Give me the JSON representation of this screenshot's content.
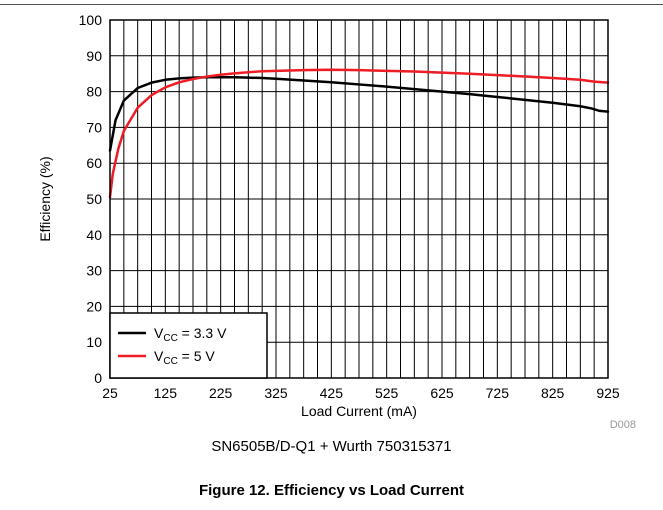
{
  "chart_data": {
    "type": "line",
    "xlabel": "Load Current (mA)",
    "ylabel": "Efficiency (%)",
    "xlim": [
      25,
      925
    ],
    "ylim": [
      0,
      100
    ],
    "x_ticks": [
      25,
      125,
      225,
      325,
      425,
      525,
      625,
      725,
      825,
      925
    ],
    "y_ticks": [
      0,
      10,
      20,
      30,
      40,
      50,
      60,
      70,
      80,
      90,
      100
    ],
    "grid": true,
    "legend_position": "bottom-left",
    "series": [
      {
        "name_main": "V",
        "name_sub": "CC",
        "name_rest": " = 3.3 V",
        "color": "#000000",
        "x": [
          25,
          35,
          50,
          75,
          100,
          125,
          150,
          175,
          200,
          225,
          250,
          275,
          300,
          325,
          375,
          425,
          475,
          525,
          575,
          625,
          675,
          725,
          775,
          825,
          875,
          895,
          910,
          925
        ],
        "y": [
          63.5,
          72,
          77.5,
          81,
          82.5,
          83.3,
          83.7,
          83.9,
          84.0,
          84.0,
          84.0,
          83.9,
          83.8,
          83.6,
          83.1,
          82.6,
          82.0,
          81.4,
          80.7,
          80.0,
          79.3,
          78.5,
          77.7,
          76.9,
          75.9,
          75.3,
          74.6,
          74.4
        ]
      },
      {
        "name_main": "V",
        "name_sub": "CC",
        "name_rest": " = 5 V",
        "color": "#ee1c25",
        "x": [
          25,
          30,
          40,
          50,
          75,
          100,
          125,
          150,
          175,
          200,
          225,
          250,
          275,
          300,
          325,
          375,
          425,
          475,
          525,
          575,
          625,
          675,
          725,
          775,
          825,
          875,
          900,
          925
        ],
        "y": [
          50.5,
          57,
          64,
          69,
          75.5,
          79.0,
          81.2,
          82.6,
          83.5,
          84.2,
          84.7,
          85.1,
          85.4,
          85.7,
          85.8,
          86.0,
          86.1,
          86.0,
          85.8,
          85.6,
          85.3,
          85.0,
          84.6,
          84.2,
          83.8,
          83.3,
          82.8,
          82.5
        ]
      }
    ]
  },
  "code": "D008",
  "subtitle": "SN6505B/D-Q1 + Wurth 750315371",
  "caption": "Figure 12.  Efficiency vs Load Current"
}
